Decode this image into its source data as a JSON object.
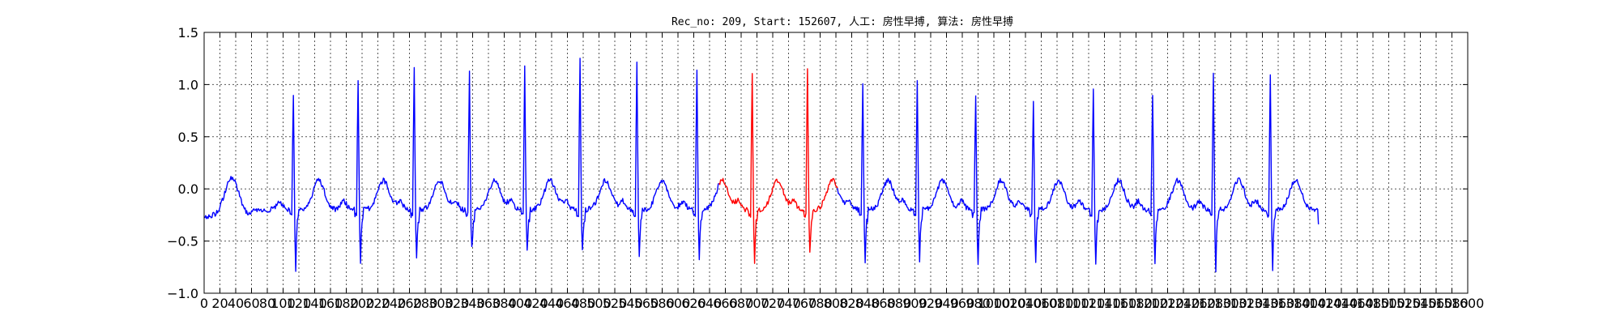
{
  "chart_data": {
    "type": "line",
    "title": "Rec_no: 209, Start: 152607, 人工: 房性早搏, 算法: 房性早搏",
    "xlabel": "",
    "ylabel": "",
    "xlim": [
      0,
      1600
    ],
    "ylim": [
      -1.0,
      1.5
    ],
    "grid": true,
    "yticks": [
      -1.0,
      -0.5,
      0.0,
      0.5,
      1.0,
      1.5
    ],
    "ytick_labels": [
      "−1.0",
      "−0.5",
      "0.0",
      "0.5",
      "1.0",
      "1.5"
    ],
    "xticks": [
      0,
      20,
      40,
      60,
      80,
      100,
      120,
      140,
      160,
      180,
      200,
      220,
      240,
      260,
      280,
      300,
      320,
      340,
      360,
      380,
      400,
      420,
      440,
      460,
      480,
      500,
      520,
      540,
      560,
      580,
      600,
      620,
      640,
      660,
      680,
      700,
      720,
      740,
      760,
      780,
      800,
      820,
      840,
      860,
      880,
      900,
      920,
      940,
      960,
      980,
      1000,
      1020,
      1040,
      1060,
      1080,
      1100,
      1120,
      1140,
      1160,
      1180,
      1200,
      1220,
      1240,
      1260,
      1280,
      1300,
      1320,
      1340,
      1360,
      1380,
      1400,
      1420,
      1440,
      1460,
      1480,
      1500,
      1520,
      1540,
      1560,
      1580,
      1600
    ],
    "colors": {
      "normal": "#0000ff",
      "highlight": "#ff0000",
      "axis": "#000000",
      "grid": "#555555"
    },
    "segments": [
      {
        "color": "normal",
        "x_start": 0,
        "x_end": 652
      },
      {
        "color": "highlight",
        "x_start": 652,
        "x_end": 802
      },
      {
        "color": "normal",
        "x_start": 802,
        "x_end": 1411
      }
    ],
    "r_peaks": [
      {
        "x": 113,
        "peak": 0.92,
        "trough": -0.77
      },
      {
        "x": 195,
        "peak": 1.05,
        "trough": -0.72
      },
      {
        "x": 266,
        "peak": 1.18,
        "trough": -0.66
      },
      {
        "x": 336,
        "peak": 1.11,
        "trough": -0.57
      },
      {
        "x": 406,
        "peak": 1.19,
        "trough": -0.57
      },
      {
        "x": 476,
        "peak": 1.23,
        "trough": -0.59
      },
      {
        "x": 548,
        "peak": 1.22,
        "trough": -0.64
      },
      {
        "x": 624,
        "peak": 1.16,
        "trough": -0.68
      },
      {
        "x": 694,
        "peak": 1.11,
        "trough": -0.69
      },
      {
        "x": 764,
        "peak": 1.17,
        "trough": -0.62
      },
      {
        "x": 834,
        "peak": 1.03,
        "trough": -0.69
      },
      {
        "x": 903,
        "peak": 1.02,
        "trough": -0.71
      },
      {
        "x": 977,
        "peak": 0.91,
        "trough": -0.75
      },
      {
        "x": 1050,
        "peak": 0.86,
        "trough": -0.71
      },
      {
        "x": 1126,
        "peak": 0.97,
        "trough": -0.71
      },
      {
        "x": 1201,
        "peak": 0.92,
        "trough": -0.74
      },
      {
        "x": 1278,
        "peak": 1.13,
        "trough": -0.78
      },
      {
        "x": 1350,
        "peak": 1.11,
        "trough": -0.78
      }
    ],
    "end_x": 1411,
    "start_value": -0.26,
    "end_value": -0.34
  }
}
